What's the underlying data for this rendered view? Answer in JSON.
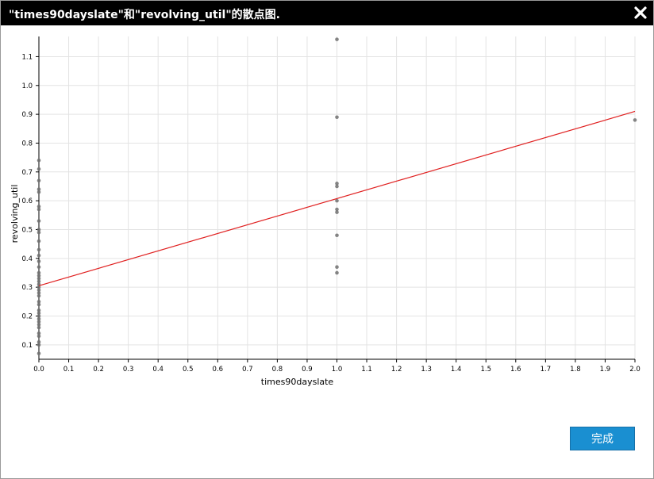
{
  "dialog": {
    "title": "\"times90dayslate\"和\"revolving_util\"的散点图.",
    "done_label": "完成"
  },
  "colors": {
    "titlebar": "#000000",
    "point": "#707070",
    "fit_line": "#e02020",
    "grid": "#e3e3e3",
    "button": "#1a8fd1"
  },
  "chart_data": {
    "type": "scatter",
    "title": "\"times90dayslate\"和\"revolving_util\"的散点图.",
    "xlabel": "times90dayslate",
    "ylabel": "revolving_util",
    "xlim": [
      0,
      2.0
    ],
    "ylim": [
      0.05,
      1.17
    ],
    "x_ticks": [
      "0.0",
      "0.1",
      "0.2",
      "0.3",
      "0.4",
      "0.5",
      "0.6",
      "0.7",
      "0.8",
      "0.9",
      "1.0",
      "1.1",
      "1.2",
      "1.3",
      "1.4",
      "1.5",
      "1.6",
      "1.7",
      "1.8",
      "1.9",
      "2.0"
    ],
    "y_ticks": [
      "0.1",
      "0.2",
      "0.3",
      "0.4",
      "0.5",
      "0.6",
      "0.7",
      "0.8",
      "0.9",
      "1.0",
      "1.1"
    ],
    "grid": true,
    "legend": "none",
    "points": [
      {
        "x": 0,
        "y": 0.74
      },
      {
        "x": 0,
        "y": 0.71
      },
      {
        "x": 0,
        "y": 0.67
      },
      {
        "x": 0,
        "y": 0.64
      },
      {
        "x": 0,
        "y": 0.63
      },
      {
        "x": 0,
        "y": 0.58
      },
      {
        "x": 0,
        "y": 0.57
      },
      {
        "x": 0,
        "y": 0.53
      },
      {
        "x": 0,
        "y": 0.5
      },
      {
        "x": 0,
        "y": 0.49
      },
      {
        "x": 0,
        "y": 0.46
      },
      {
        "x": 0,
        "y": 0.43
      },
      {
        "x": 0,
        "y": 0.41
      },
      {
        "x": 0,
        "y": 0.39
      },
      {
        "x": 0,
        "y": 0.37
      },
      {
        "x": 0,
        "y": 0.35
      },
      {
        "x": 0,
        "y": 0.34
      },
      {
        "x": 0,
        "y": 0.33
      },
      {
        "x": 0,
        "y": 0.32
      },
      {
        "x": 0,
        "y": 0.31
      },
      {
        "x": 0,
        "y": 0.3
      },
      {
        "x": 0,
        "y": 0.29
      },
      {
        "x": 0,
        "y": 0.28
      },
      {
        "x": 0,
        "y": 0.27
      },
      {
        "x": 0,
        "y": 0.25
      },
      {
        "x": 0,
        "y": 0.24
      },
      {
        "x": 0,
        "y": 0.22
      },
      {
        "x": 0,
        "y": 0.21
      },
      {
        "x": 0,
        "y": 0.2
      },
      {
        "x": 0,
        "y": 0.19
      },
      {
        "x": 0,
        "y": 0.18
      },
      {
        "x": 0,
        "y": 0.17
      },
      {
        "x": 0,
        "y": 0.16
      },
      {
        "x": 0,
        "y": 0.14
      },
      {
        "x": 0,
        "y": 0.13
      },
      {
        "x": 0,
        "y": 0.11
      },
      {
        "x": 0,
        "y": 0.1
      },
      {
        "x": 0,
        "y": 0.07
      },
      {
        "x": 1,
        "y": 1.16
      },
      {
        "x": 1,
        "y": 0.89
      },
      {
        "x": 1,
        "y": 0.66
      },
      {
        "x": 1,
        "y": 0.65
      },
      {
        "x": 1,
        "y": 0.6
      },
      {
        "x": 1,
        "y": 0.57
      },
      {
        "x": 1,
        "y": 0.56
      },
      {
        "x": 1,
        "y": 0.48
      },
      {
        "x": 1,
        "y": 0.37
      },
      {
        "x": 1,
        "y": 0.35
      },
      {
        "x": 2,
        "y": 0.88
      }
    ],
    "fit_line": {
      "x": [
        0,
        2.0
      ],
      "y": [
        0.305,
        0.91
      ]
    }
  }
}
